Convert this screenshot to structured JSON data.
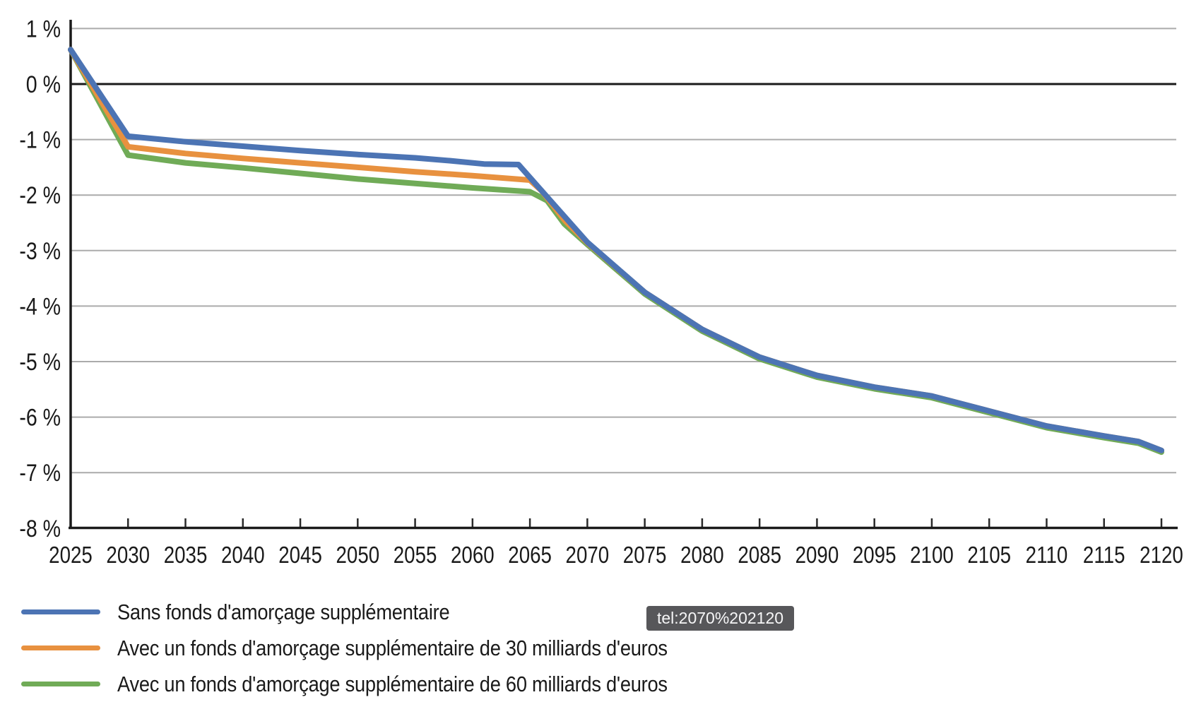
{
  "tooltip": {
    "text": "tel:2070%202120"
  },
  "chart_data": {
    "type": "line",
    "title": "",
    "xlabel": "",
    "ylabel": "",
    "xlim": [
      2025,
      2120
    ],
    "ylim": [
      -8,
      1
    ],
    "grid": true,
    "zero_line": true,
    "legend_position": "bottom-left",
    "x_ticks": [
      2025,
      2030,
      2035,
      2040,
      2045,
      2050,
      2055,
      2060,
      2065,
      2070,
      2075,
      2080,
      2085,
      2090,
      2095,
      2100,
      2105,
      2110,
      2115,
      2120
    ],
    "y_ticks": [
      {
        "label": "1 %",
        "value": 1
      },
      {
        "label": "0 %",
        "value": 0
      },
      {
        "label": "-1 %",
        "value": -1
      },
      {
        "label": "-2 %",
        "value": -2
      },
      {
        "label": "-3 %",
        "value": -3
      },
      {
        "label": "-4 %",
        "value": -4
      },
      {
        "label": "-5 %",
        "value": -5
      },
      {
        "label": "-6 %",
        "value": -6
      },
      {
        "label": "-7 %",
        "value": -7
      },
      {
        "label": "-8 %",
        "value": -8
      }
    ],
    "series": [
      {
        "name": "Sans fonds d'amorçage supplémentaire",
        "color": "#4C74B4",
        "points": [
          [
            2025,
            0.62
          ],
          [
            2030,
            -0.94
          ],
          [
            2035,
            -1.04
          ],
          [
            2040,
            -1.12
          ],
          [
            2045,
            -1.2
          ],
          [
            2050,
            -1.27
          ],
          [
            2055,
            -1.33
          ],
          [
            2058,
            -1.38
          ],
          [
            2061,
            -1.44
          ],
          [
            2064,
            -1.45
          ],
          [
            2067,
            -2.15
          ],
          [
            2070,
            -2.85
          ],
          [
            2075,
            -3.75
          ],
          [
            2080,
            -4.42
          ],
          [
            2085,
            -4.92
          ],
          [
            2090,
            -5.25
          ],
          [
            2095,
            -5.46
          ],
          [
            2100,
            -5.62
          ],
          [
            2105,
            -5.89
          ],
          [
            2110,
            -6.16
          ],
          [
            2115,
            -6.34
          ],
          [
            2118,
            -6.44
          ],
          [
            2120,
            -6.6
          ]
        ]
      },
      {
        "name": "Avec un fonds d'amorçage supplémentaire de 30 milliards d'euros",
        "color": "#E8913F",
        "points": [
          [
            2025,
            0.62
          ],
          [
            2030,
            -1.13
          ],
          [
            2035,
            -1.25
          ],
          [
            2040,
            -1.34
          ],
          [
            2045,
            -1.42
          ],
          [
            2050,
            -1.5
          ],
          [
            2055,
            -1.58
          ],
          [
            2060,
            -1.65
          ],
          [
            2065,
            -1.73
          ],
          [
            2066,
            -1.92
          ],
          [
            2068,
            -2.45
          ],
          [
            2070,
            -2.86
          ],
          [
            2075,
            -3.75
          ],
          [
            2080,
            -4.42
          ],
          [
            2085,
            -4.92
          ],
          [
            2090,
            -5.25
          ],
          [
            2095,
            -5.46
          ],
          [
            2100,
            -5.62
          ],
          [
            2105,
            -5.89
          ],
          [
            2110,
            -6.16
          ],
          [
            2115,
            -6.34
          ],
          [
            2118,
            -6.44
          ],
          [
            2120,
            -6.6
          ]
        ]
      },
      {
        "name": "Avec un fonds d'amorçage supplémentaire de 60 milliards d'euros",
        "color": "#70AB57",
        "points": [
          [
            2025,
            0.62
          ],
          [
            2030,
            -1.28
          ],
          [
            2035,
            -1.42
          ],
          [
            2040,
            -1.51
          ],
          [
            2045,
            -1.61
          ],
          [
            2050,
            -1.71
          ],
          [
            2055,
            -1.79
          ],
          [
            2060,
            -1.87
          ],
          [
            2065,
            -1.94
          ],
          [
            2066.5,
            -2.1
          ],
          [
            2068,
            -2.52
          ],
          [
            2070,
            -2.89
          ],
          [
            2075,
            -3.78
          ],
          [
            2080,
            -4.45
          ],
          [
            2085,
            -4.95
          ],
          [
            2090,
            -5.28
          ],
          [
            2095,
            -5.49
          ],
          [
            2100,
            -5.65
          ],
          [
            2105,
            -5.92
          ],
          [
            2110,
            -6.19
          ],
          [
            2115,
            -6.37
          ],
          [
            2118,
            -6.47
          ],
          [
            2120,
            -6.63
          ]
        ]
      }
    ]
  }
}
